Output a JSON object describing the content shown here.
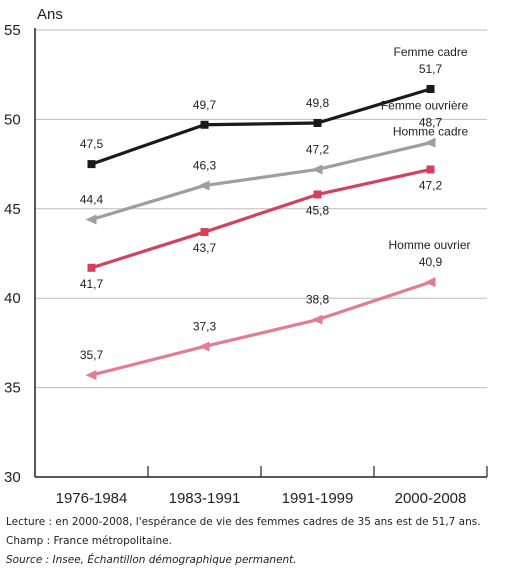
{
  "chart_data": {
    "type": "line",
    "ylabel": "Ans",
    "ylim": [
      30,
      55
    ],
    "yticks": [
      30,
      35,
      40,
      45,
      50,
      55
    ],
    "categories": [
      "1976-1984",
      "1983-1991",
      "1991-1999",
      "2000-2008"
    ],
    "grid": true,
    "series": [
      {
        "name": "Femme cadre",
        "values": [
          47.5,
          49.7,
          49.8,
          51.7
        ],
        "labels": [
          "47,5",
          "49,7",
          "49,8",
          "51,7"
        ],
        "color": "#1a1a1a",
        "marker": "square"
      },
      {
        "name": "Femme ouvrière",
        "values": [
          44.4,
          46.3,
          47.2,
          48.7
        ],
        "labels": [
          "44,4",
          "46,3",
          "47,2",
          "48,7"
        ],
        "color": "#9e9e9e",
        "marker": "triangle"
      },
      {
        "name": "Homme cadre",
        "values": [
          41.7,
          43.7,
          45.8,
          47.2
        ],
        "labels": [
          "41,7",
          "43,7",
          "45,8",
          "47,2"
        ],
        "color": "#d4415f",
        "marker": "square"
      },
      {
        "name": "Homme ouvrier",
        "values": [
          35.7,
          37.3,
          38.8,
          40.9
        ],
        "labels": [
          "35,7",
          "37,3",
          "38,8",
          "40,9"
        ],
        "color": "#e27d91",
        "marker": "triangle"
      }
    ]
  },
  "notes": {
    "lecture": "Lecture : en 2000-2008, l'espérance de vie des femmes cadres de 35 ans est de 51,7 ans.",
    "champ": "Champ : France métropolitaine.",
    "source": "Source : Insee, Échantillon démographique permanent."
  }
}
